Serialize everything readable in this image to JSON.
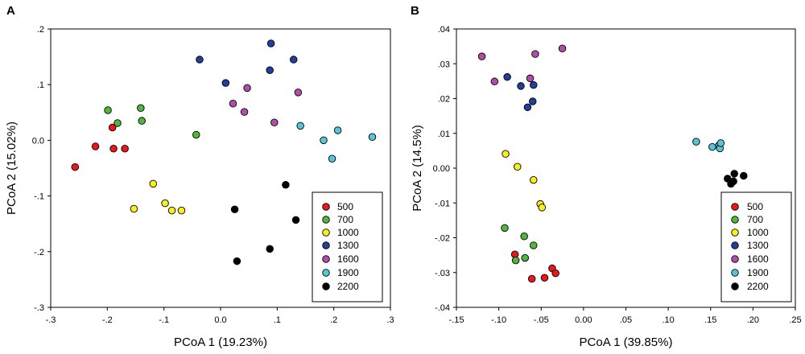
{
  "figure": {
    "series_names": [
      "500",
      "700",
      "1000",
      "1300",
      "1600",
      "1900",
      "2200"
    ],
    "colors": {
      "500": "#e8191d",
      "700": "#4fb73a",
      "1000": "#f7ef1e",
      "1300": "#243e9c",
      "1600": "#b24ea8",
      "1900": "#56c6d6",
      "2200": "#000000"
    }
  },
  "chart_data": [
    {
      "panel": "A",
      "type": "scatter",
      "xlabel": "PCoA 1 (19.23%)",
      "ylabel": "PCoA 2 (15.02%)",
      "xlim": [
        -0.3,
        0.3
      ],
      "ylim": [
        -0.3,
        0.2
      ],
      "xticks": [
        -0.3,
        -0.2,
        -0.1,
        0.0,
        0.1,
        0.2,
        0.3
      ],
      "xtick_labels": [
        "-.3",
        "-.2",
        "-.1",
        "0.0",
        ".1",
        ".2",
        ".3"
      ],
      "yticks": [
        -0.3,
        -0.2,
        -0.1,
        0.0,
        0.1,
        0.2
      ],
      "ytick_labels": [
        "-.3",
        "-.2",
        "-.1",
        "0.0",
        ".1",
        ".2"
      ],
      "legend": "bottom-right",
      "series": [
        {
          "name": "500",
          "points": [
            [
              -0.257,
              -0.048
            ],
            [
              -0.221,
              -0.011
            ],
            [
              -0.191,
              0.023
            ],
            [
              -0.189,
              -0.015
            ],
            [
              -0.169,
              -0.015
            ]
          ]
        },
        {
          "name": "700",
          "points": [
            [
              -0.199,
              0.054
            ],
            [
              -0.182,
              0.031
            ],
            [
              -0.141,
              0.058
            ],
            [
              -0.139,
              0.035
            ],
            [
              -0.043,
              0.01
            ]
          ]
        },
        {
          "name": "1000",
          "points": [
            [
              -0.119,
              -0.078
            ],
            [
              -0.153,
              -0.123
            ],
            [
              -0.098,
              -0.113
            ],
            [
              -0.086,
              -0.126
            ],
            [
              -0.069,
              -0.126
            ]
          ]
        },
        {
          "name": "1300",
          "points": [
            [
              -0.037,
              0.145
            ],
            [
              0.009,
              0.103
            ],
            [
              0.087,
              0.126
            ],
            [
              0.089,
              0.174
            ],
            [
              0.129,
              0.145
            ]
          ]
        },
        {
          "name": "1600",
          "points": [
            [
              0.022,
              0.066
            ],
            [
              0.042,
              0.051
            ],
            [
              0.047,
              0.094
            ],
            [
              0.095,
              0.032
            ],
            [
              0.137,
              0.086
            ]
          ]
        },
        {
          "name": "1900",
          "points": [
            [
              0.141,
              0.026
            ],
            [
              0.182,
              0.0
            ],
            [
              0.197,
              -0.033
            ],
            [
              0.207,
              0.018
            ],
            [
              0.268,
              0.006
            ]
          ]
        },
        {
          "name": "2200",
          "points": [
            [
              0.025,
              -0.124
            ],
            [
              0.029,
              -0.217
            ],
            [
              0.087,
              -0.195
            ],
            [
              0.115,
              -0.08
            ],
            [
              0.133,
              -0.143
            ]
          ]
        }
      ]
    },
    {
      "panel": "B",
      "type": "scatter",
      "xlabel": "PCoA 1 (39.85%)",
      "ylabel": "PCoA 2 (14.5%)",
      "xlim": [
        -0.15,
        0.25
      ],
      "ylim": [
        -0.04,
        0.04
      ],
      "xticks": [
        -0.15,
        -0.1,
        -0.05,
        0.0,
        0.05,
        0.1,
        0.15,
        0.2,
        0.25
      ],
      "xtick_labels": [
        "-.15",
        "-.10",
        "-.05",
        "0.00",
        ".05",
        ".10",
        ".15",
        ".20",
        ".25"
      ],
      "yticks": [
        -0.04,
        -0.03,
        -0.02,
        -0.01,
        0.0,
        0.01,
        0.02,
        0.03,
        0.04
      ],
      "ytick_labels": [
        "-.04",
        "-.03",
        "-.02",
        "-.01",
        "0.00",
        ".01",
        ".02",
        ".03",
        ".04"
      ],
      "legend": "bottom-right",
      "series": [
        {
          "name": "500",
          "points": [
            [
              -0.081,
              -0.0248
            ],
            [
              -0.061,
              -0.0318
            ],
            [
              -0.046,
              -0.0315
            ],
            [
              -0.037,
              -0.0288
            ],
            [
              -0.033,
              -0.0302
            ]
          ]
        },
        {
          "name": "700",
          "points": [
            [
              -0.093,
              -0.0172
            ],
            [
              -0.08,
              -0.0265
            ],
            [
              -0.07,
              -0.0196
            ],
            [
              -0.069,
              -0.0258
            ],
            [
              -0.059,
              -0.0222
            ]
          ]
        },
        {
          "name": "1000",
          "points": [
            [
              -0.092,
              0.0041
            ],
            [
              -0.078,
              0.0004
            ],
            [
              -0.059,
              -0.0034
            ],
            [
              -0.051,
              -0.0103
            ],
            [
              -0.049,
              -0.0113
            ]
          ]
        },
        {
          "name": "1300",
          "points": [
            [
              -0.09,
              0.0262
            ],
            [
              -0.074,
              0.0236
            ],
            [
              -0.066,
              0.0175
            ],
            [
              -0.06,
              0.0192
            ],
            [
              -0.059,
              0.0239
            ]
          ]
        },
        {
          "name": "1600",
          "points": [
            [
              -0.12,
              0.0321
            ],
            [
              -0.105,
              0.0249
            ],
            [
              -0.063,
              0.0258
            ],
            [
              -0.057,
              0.0328
            ],
            [
              -0.025,
              0.0344
            ]
          ]
        },
        {
          "name": "1900",
          "points": [
            [
              0.133,
              0.0076
            ],
            [
              0.152,
              0.0061
            ],
            [
              0.16,
              0.0066
            ],
            [
              0.161,
              0.0057
            ],
            [
              0.162,
              0.0072
            ]
          ]
        },
        {
          "name": "2200",
          "points": [
            [
              0.17,
              -0.003
            ],
            [
              0.174,
              -0.0045
            ],
            [
              0.177,
              -0.0038
            ],
            [
              0.178,
              -0.0016
            ],
            [
              0.189,
              -0.0022
            ]
          ]
        }
      ]
    }
  ]
}
